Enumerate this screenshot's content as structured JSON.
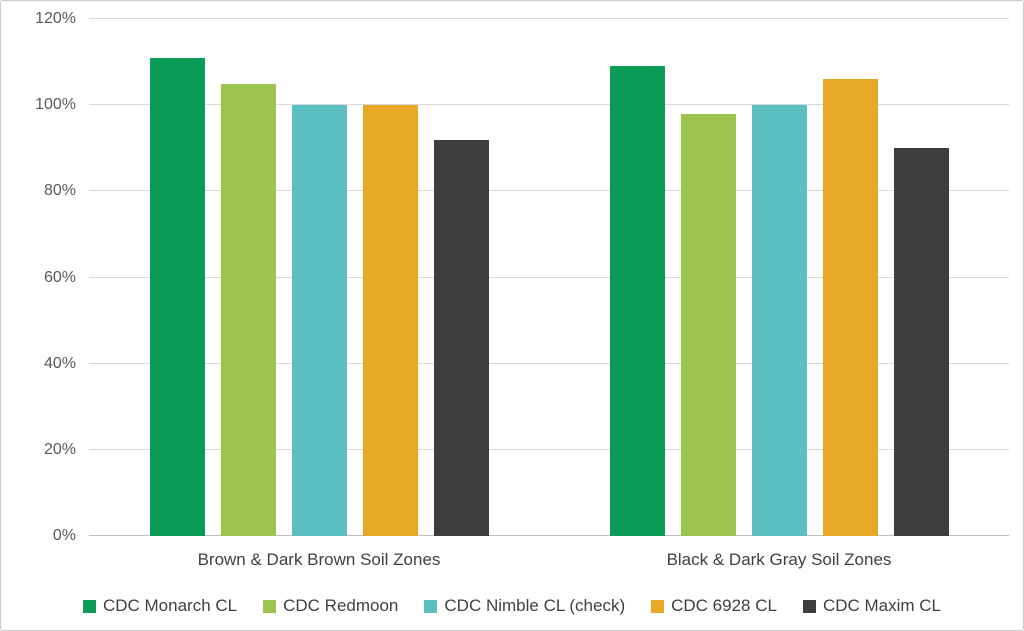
{
  "chart_data": {
    "type": "bar",
    "title": "",
    "categories": [
      "Brown & Dark Brown Soil Zones",
      "Black & Dark Gray Soil Zones"
    ],
    "series": [
      {
        "name": "CDC Monarch CL",
        "color": "#0a9b57",
        "values": [
          111,
          109
        ]
      },
      {
        "name": "CDC Redmoon",
        "color": "#9cc34d",
        "values": [
          105,
          98
        ]
      },
      {
        "name": "CDC Nimble CL (check)",
        "color": "#5cbfc1",
        "values": [
          100,
          100
        ]
      },
      {
        "name": "CDC 6928 CL",
        "color": "#e7a826",
        "values": [
          100,
          106
        ]
      },
      {
        "name": "CDC Maxim CL",
        "color": "#3d3d3d",
        "values": [
          92,
          90
        ]
      }
    ],
    "ylim": [
      0,
      120
    ],
    "yticks": [
      {
        "value": 0,
        "label": "0%"
      },
      {
        "value": 20,
        "label": "20%"
      },
      {
        "value": 40,
        "label": "40%"
      },
      {
        "value": 60,
        "label": "60%"
      },
      {
        "value": 80,
        "label": "80%"
      },
      {
        "value": 100,
        "label": "100%"
      },
      {
        "value": 120,
        "label": "120%"
      }
    ],
    "grid": true,
    "legend_position": "bottom"
  }
}
